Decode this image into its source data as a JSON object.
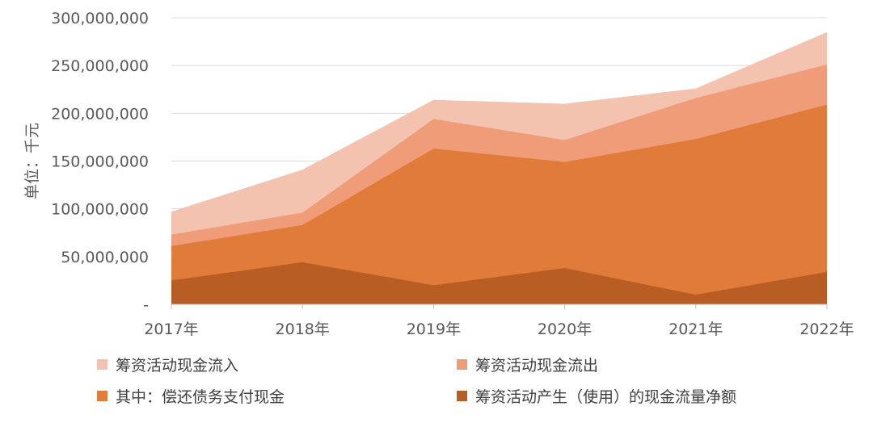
{
  "chart_data": {
    "type": "area",
    "xlabel": "",
    "ylabel": "单位：千元",
    "ylim": [
      0,
      300000000
    ],
    "yticks": [
      "-",
      "50,000,000",
      "100,000,000",
      "150,000,000",
      "200,000,000",
      "250,000,000",
      "300,000,000"
    ],
    "categories": [
      "2017年",
      "2018年",
      "2019年",
      "2020年",
      "2021年",
      "2022年"
    ],
    "series": [
      {
        "name": "筹资活动现金流入",
        "color": "#f4c3b0",
        "values": [
          97000000,
          141000000,
          214000000,
          210000000,
          226000000,
          285000000
        ]
      },
      {
        "name": "筹资活动现金流出",
        "color": "#f09c78",
        "values": [
          73000000,
          96000000,
          194000000,
          172000000,
          216000000,
          251000000
        ]
      },
      {
        "name": "其中：偿还债务支付现金",
        "color": "#e07b39",
        "values": [
          61000000,
          83000000,
          163000000,
          149000000,
          173000000,
          209000000
        ]
      },
      {
        "name": "筹资活动产生（使用）的现金流量净额",
        "color": "#b85e24",
        "values": [
          25000000,
          44000000,
          20000000,
          38000000,
          10000000,
          34000000
        ]
      }
    ],
    "grid": true,
    "legend_position": "bottom"
  }
}
